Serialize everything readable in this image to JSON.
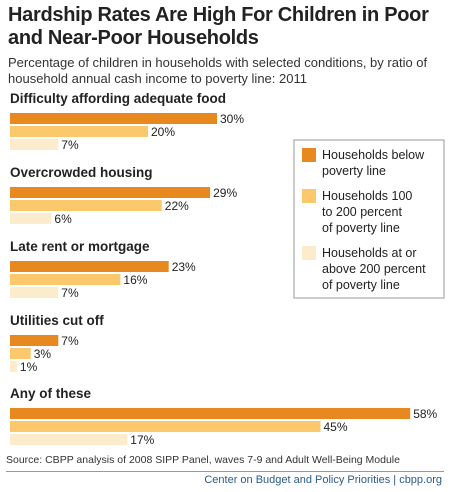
{
  "title": "Hardship Rates Are High For Children in Poor and Near-Poor Households",
  "subtitle": "Percentage of children in households with selected conditions, by ratio of household annual cash income to poverty line: 2011",
  "source": "Source: CBPP analysis of 2008 SIPP Panel, waves 7-9 and Adult Well-Being Module",
  "credit": "Center on Budget and Policy Priorities | cbpp.org",
  "chart_data": {
    "type": "bar",
    "orientation": "horizontal",
    "categories": [
      "Difficulty affording adequate food",
      "Overcrowded housing",
      "Late rent or mortgage",
      "Utilities cut off",
      "Any of these"
    ],
    "series": [
      {
        "name": "Households below poverty line",
        "color": "#e8891f",
        "values": [
          30,
          29,
          23,
          7,
          58
        ]
      },
      {
        "name": "Households 100 to 200 percent of poverty line",
        "color": "#fbc96b",
        "values": [
          20,
          22,
          16,
          3,
          45
        ]
      },
      {
        "name": "Households at or above 200 percent of poverty line",
        "color": "#fdeccb",
        "values": [
          7,
          6,
          7,
          1,
          17
        ]
      }
    ],
    "value_suffix": "%",
    "legend_position": "right",
    "xlim": [
      0,
      60
    ],
    "grid": false
  }
}
